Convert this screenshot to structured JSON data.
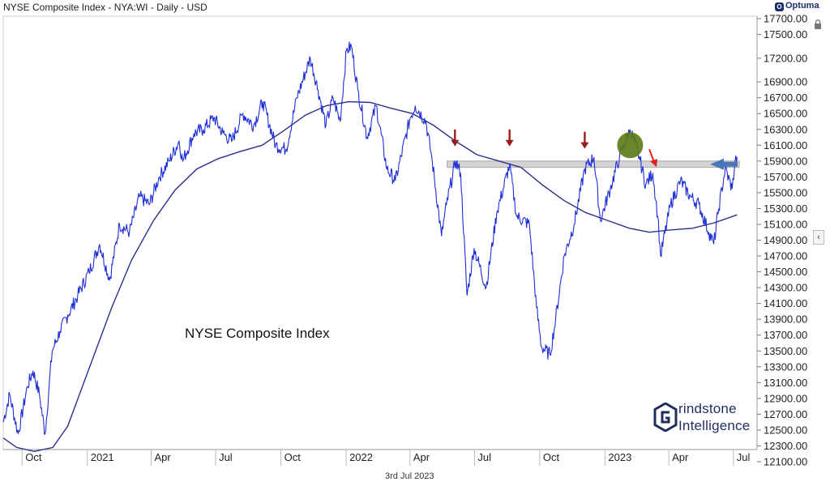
{
  "header": {
    "title": "NYSE Composite Index - NYA:WI - Daily - USD",
    "brand": "Optuma"
  },
  "footer": {
    "date": "3rd Jul 2023"
  },
  "annotation_text": "NYSE Composite Index",
  "watermark": {
    "line1": "rindstone",
    "line2": "Intelligence"
  },
  "colors": {
    "price": "#1f2fd6",
    "ma": "#2b2f8c",
    "band": "#c9c9c9",
    "arrow_dark": "#9b1c1c",
    "arrow_red": "#e02020",
    "highlight": "#5b7a14",
    "pointer": "#4a73b8"
  },
  "chart_data": {
    "type": "line",
    "title": "NYSE Composite Index - NYA:WI - Daily - USD",
    "ylim": [
      12200,
      17800
    ],
    "y_ticks": [
      "17700.00",
      "17500.00",
      "17200.00",
      "16900.00",
      "16700.00",
      "16500.00",
      "16300.00",
      "16100.00",
      "15900.00",
      "15700.00",
      "15500.00",
      "15300.00",
      "15100.00",
      "14900.00",
      "14700.00",
      "14500.00",
      "14300.00",
      "14100.00",
      "13900.00",
      "13700.00",
      "13500.00",
      "13300.00",
      "13100.00",
      "12900.00",
      "12700.00",
      "12500.00",
      "12300.00",
      "12100.00"
    ],
    "x_ticks": [
      "Oct",
      "2021",
      "Apr",
      "Jul",
      "Oct",
      "2022",
      "Apr",
      "Jul",
      "Oct",
      "2023",
      "Apr",
      "Jul"
    ],
    "x_range": [
      "2020-09-01",
      "2023-07-31"
    ],
    "grid": false,
    "resistance_band": [
      15820,
      15900
    ],
    "series": [
      {
        "values": [
          [
            "2020-09-01",
            12600
          ],
          [
            "2020-09-10",
            12950
          ],
          [
            "2020-09-22",
            12450
          ],
          [
            "2020-10-05",
            13050
          ],
          [
            "2020-10-13",
            13250
          ],
          [
            "2020-10-22",
            12950
          ],
          [
            "2020-10-30",
            12450
          ],
          [
            "2020-11-09",
            13500
          ],
          [
            "2020-11-20",
            13750
          ],
          [
            "2020-12-01",
            13950
          ],
          [
            "2020-12-15",
            14200
          ],
          [
            "2020-12-31",
            14500
          ],
          [
            "2021-01-15",
            14850
          ],
          [
            "2021-01-29",
            14400
          ],
          [
            "2021-02-12",
            15100
          ],
          [
            "2021-02-26",
            15000
          ],
          [
            "2021-03-12",
            15450
          ],
          [
            "2021-03-26",
            15350
          ],
          [
            "2021-04-09",
            15700
          ],
          [
            "2021-04-23",
            15900
          ],
          [
            "2021-05-07",
            16150
          ],
          [
            "2021-05-12",
            15900
          ],
          [
            "2021-05-28",
            16250
          ],
          [
            "2021-06-10",
            16300
          ],
          [
            "2021-06-25",
            16450
          ],
          [
            "2021-07-08",
            16250
          ],
          [
            "2021-07-20",
            16150
          ],
          [
            "2021-08-05",
            16500
          ],
          [
            "2021-08-20",
            16350
          ],
          [
            "2021-09-02",
            16650
          ],
          [
            "2021-09-20",
            16100
          ],
          [
            "2021-10-05",
            16050
          ],
          [
            "2021-10-20",
            16700
          ],
          [
            "2021-11-08",
            17200
          ],
          [
            "2021-11-19",
            16800
          ],
          [
            "2021-11-30",
            16350
          ],
          [
            "2021-12-10",
            16700
          ],
          [
            "2021-12-20",
            16400
          ],
          [
            "2021-12-29",
            17300
          ],
          [
            "2022-01-05",
            17350
          ],
          [
            "2022-01-14",
            16800
          ],
          [
            "2022-01-27",
            16200
          ],
          [
            "2022-02-09",
            16600
          ],
          [
            "2022-02-24",
            15800
          ],
          [
            "2022-03-08",
            15650
          ],
          [
            "2022-03-29",
            16450
          ],
          [
            "2022-04-05",
            16600
          ],
          [
            "2022-04-20",
            16400
          ],
          [
            "2022-04-29",
            15900
          ],
          [
            "2022-05-12",
            14950
          ],
          [
            "2022-05-19",
            15350
          ],
          [
            "2022-06-01",
            15900
          ],
          [
            "2022-06-08",
            15750
          ],
          [
            "2022-06-17",
            14200
          ],
          [
            "2022-06-27",
            14800
          ],
          [
            "2022-07-14",
            14300
          ],
          [
            "2022-07-29",
            15250
          ],
          [
            "2022-08-16",
            15850
          ],
          [
            "2022-08-26",
            15200
          ],
          [
            "2022-09-13",
            15100
          ],
          [
            "2022-09-23",
            14050
          ],
          [
            "2022-09-30",
            13550
          ],
          [
            "2022-10-12",
            13450
          ],
          [
            "2022-10-20",
            13900
          ],
          [
            "2022-11-01",
            14700
          ],
          [
            "2022-11-15",
            15100
          ],
          [
            "2022-11-30",
            15800
          ],
          [
            "2022-12-13",
            15950
          ],
          [
            "2022-12-22",
            15150
          ],
          [
            "2023-01-05",
            15550
          ],
          [
            "2023-01-18",
            15950
          ],
          [
            "2023-02-02",
            16300
          ],
          [
            "2023-02-15",
            15950
          ],
          [
            "2023-02-24",
            15600
          ],
          [
            "2023-03-06",
            15750
          ],
          [
            "2023-03-13",
            15200
          ],
          [
            "2023-03-17",
            14700
          ],
          [
            "2023-03-31",
            15350
          ],
          [
            "2023-04-14",
            15650
          ],
          [
            "2023-04-28",
            15450
          ],
          [
            "2023-05-10",
            15350
          ],
          [
            "2023-05-24",
            15000
          ],
          [
            "2023-05-31",
            14850
          ],
          [
            "2023-06-07",
            15300
          ],
          [
            "2023-06-16",
            15800
          ],
          [
            "2023-06-26",
            15550
          ],
          [
            "2023-06-30",
            15900
          ],
          [
            "2023-07-03",
            15950
          ]
        ]
      },
      {
        "values": [
          [
            "2020-09-01",
            12400
          ],
          [
            "2020-09-20",
            12280
          ],
          [
            "2020-10-15",
            12230
          ],
          [
            "2020-11-10",
            12280
          ],
          [
            "2020-12-01",
            12550
          ],
          [
            "2021-01-01",
            13300
          ],
          [
            "2021-02-01",
            14050
          ],
          [
            "2021-03-01",
            14650
          ],
          [
            "2021-04-01",
            15150
          ],
          [
            "2021-05-01",
            15530
          ],
          [
            "2021-06-01",
            15800
          ],
          [
            "2021-07-01",
            15930
          ],
          [
            "2021-08-01",
            16020
          ],
          [
            "2021-09-01",
            16100
          ],
          [
            "2021-10-01",
            16280
          ],
          [
            "2021-11-01",
            16480
          ],
          [
            "2021-12-01",
            16600
          ],
          [
            "2022-01-01",
            16650
          ],
          [
            "2022-02-01",
            16640
          ],
          [
            "2022-03-01",
            16570
          ],
          [
            "2022-04-01",
            16500
          ],
          [
            "2022-05-01",
            16350
          ],
          [
            "2022-06-01",
            16150
          ],
          [
            "2022-07-01",
            15980
          ],
          [
            "2022-08-01",
            15900
          ],
          [
            "2022-09-01",
            15820
          ],
          [
            "2022-10-01",
            15600
          ],
          [
            "2022-11-01",
            15400
          ],
          [
            "2022-12-01",
            15250
          ],
          [
            "2023-01-01",
            15150
          ],
          [
            "2023-02-01",
            15050
          ],
          [
            "2023-03-01",
            15000
          ],
          [
            "2023-04-01",
            15030
          ],
          [
            "2023-05-01",
            15050
          ],
          [
            "2023-06-01",
            15120
          ],
          [
            "2023-07-03",
            15220
          ]
        ]
      }
    ]
  }
}
